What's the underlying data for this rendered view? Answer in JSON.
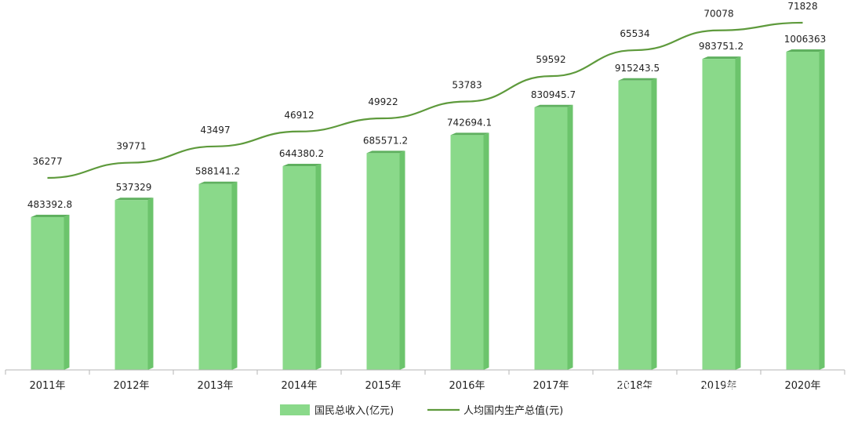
{
  "chart_data": {
    "type": "bar",
    "categories": [
      "2011年",
      "2012年",
      "2013年",
      "2014年",
      "2015年",
      "2016年",
      "2017年",
      "2018年",
      "2019年",
      "2020年"
    ],
    "series": [
      {
        "name": "国民总收入(亿元)",
        "type": "bar",
        "values": [
          483392.8,
          537329,
          588141.2,
          644380.2,
          685571.2,
          742694.1,
          830945.7,
          915243.5,
          983751.2,
          1006363
        ],
        "labels": [
          "483392.8",
          "537329",
          "588141.2",
          "644380.2",
          "685571.2",
          "742694.1",
          "830945.7",
          "915243.5",
          "983751.2",
          "1006363"
        ],
        "color": "#8ad98a"
      },
      {
        "name": "人均国内生产总值(元)",
        "type": "line",
        "values": [
          36277,
          39771,
          43497,
          46912,
          49922,
          53783,
          59592,
          65534,
          70078,
          71828
        ],
        "labels": [
          "36277",
          "39771",
          "43497",
          "46912",
          "49922",
          "53783",
          "59592",
          "65534",
          "70078",
          "71828"
        ],
        "color": "#5e9a3c"
      }
    ],
    "legend_position": "bottom-center",
    "grid": false
  },
  "watermark": "知乎 @勤劳的小蜜蜂"
}
